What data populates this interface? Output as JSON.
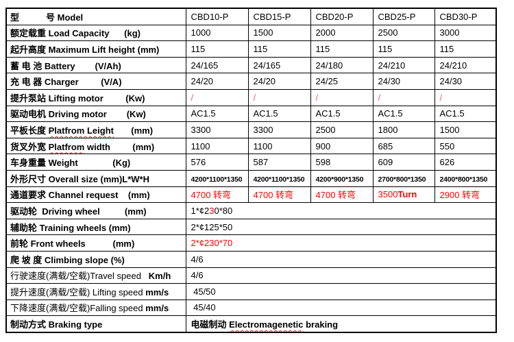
{
  "colors": {
    "highlight_red": "#ff0000",
    "slash_red": "#ff5566",
    "squiggle_red": "#dd2222",
    "grid_black": "#000000"
  },
  "table": {
    "rows": [
      {
        "id": "model",
        "label": [
          {
            "t": "型　　　号 Model",
            "b": true
          }
        ],
        "cells": [
          [
            {
              "t": "CBD10-P"
            }
          ],
          [
            {
              "t": "CBD15-P"
            }
          ],
          [
            {
              "t": "CBD20-P"
            }
          ],
          [
            {
              "t": "CBD25-P"
            }
          ],
          [
            {
              "t": "CBD30-P"
            }
          ]
        ]
      },
      {
        "id": "load-capacity",
        "label": [
          {
            "t": "额定载重 Load Capacity      (kg)",
            "b": true
          }
        ],
        "cells": [
          [
            {
              "t": "1000"
            }
          ],
          [
            {
              "t": "1500"
            }
          ],
          [
            {
              "t": "2000"
            }
          ],
          [
            {
              "t": "2500"
            }
          ],
          [
            {
              "t": "3000"
            }
          ]
        ]
      },
      {
        "id": "max-lift-height",
        "label": [
          {
            "t": "起升高度 Maximum Lift height (mm)",
            "b": true
          }
        ],
        "cells": [
          [
            {
              "t": "115"
            }
          ],
          [
            {
              "t": "115"
            }
          ],
          [
            {
              "t": "115"
            }
          ],
          [
            {
              "t": "115"
            }
          ],
          [
            {
              "t": "115"
            }
          ]
        ]
      },
      {
        "id": "battery",
        "label": [
          {
            "t": "蓄 电 池 Battery        (V/Ah)",
            "b": true
          }
        ],
        "cells": [
          [
            {
              "t": "24/165"
            }
          ],
          [
            {
              "t": "24/165"
            }
          ],
          [
            {
              "t": "24/180"
            }
          ],
          [
            {
              "t": "24/210"
            }
          ],
          [
            {
              "t": "24/210"
            }
          ]
        ]
      },
      {
        "id": "charger",
        "label": [
          {
            "t": "充 电 器 Charger         (V/A)",
            "b": true
          }
        ],
        "cells": [
          [
            {
              "t": "24/20"
            }
          ],
          [
            {
              "t": "24/20"
            }
          ],
          [
            {
              "t": "24/25"
            }
          ],
          [
            {
              "t": "24/30"
            }
          ],
          [
            {
              "t": "24/30"
            }
          ]
        ]
      },
      {
        "id": "lifting-motor",
        "label": [
          {
            "t": "提升泵站 Lifting motor         (Kw)",
            "b": true
          }
        ],
        "cells": [
          [
            {
              "t": "/",
              "slash": true
            }
          ],
          [
            {
              "t": "/",
              "slash": true
            }
          ],
          [
            {
              "t": "/",
              "slash": true
            }
          ],
          [
            {
              "t": "/",
              "slash": true
            }
          ],
          [
            {
              "t": "/",
              "slash": true
            }
          ]
        ]
      },
      {
        "id": "driving-motor",
        "label": [
          {
            "t": "驱动电机 Driving motor        (Kw)",
            "b": true
          }
        ],
        "cells": [
          [
            {
              "t": "AC1.5"
            }
          ],
          [
            {
              "t": "AC1.5"
            }
          ],
          [
            {
              "t": "AC1.5"
            }
          ],
          [
            {
              "t": "AC1.5"
            }
          ],
          [
            {
              "t": "AC1.5"
            }
          ]
        ]
      },
      {
        "id": "platform-length",
        "label": [
          {
            "t": "平板长度 ",
            "b": true
          },
          {
            "t": "Platfrom Leight",
            "b": true,
            "wavy": true
          },
          {
            "t": "       (mm)",
            "b": true
          }
        ],
        "cells": [
          [
            {
              "t": "3300"
            }
          ],
          [
            {
              "t": "3300"
            }
          ],
          [
            {
              "t": "2500"
            }
          ],
          [
            {
              "t": "1800"
            }
          ],
          [
            {
              "t": "1500"
            }
          ]
        ]
      },
      {
        "id": "platform-width",
        "label": [
          {
            "t": "货叉外宽 ",
            "b": true
          },
          {
            "t": "Platfrom",
            "b": true,
            "wavy": true
          },
          {
            "t": " width         (mm)",
            "b": true
          }
        ],
        "cells": [
          [
            {
              "t": "1100"
            }
          ],
          [
            {
              "t": "1100"
            }
          ],
          [
            {
              "t": "900"
            }
          ],
          [
            {
              "t": "685"
            }
          ],
          [
            {
              "t": "550"
            }
          ]
        ]
      },
      {
        "id": "weight",
        "label": [
          {
            "t": "车身重量 Weight              (Kg)",
            "b": true
          }
        ],
        "cells": [
          [
            {
              "t": "576"
            }
          ],
          [
            {
              "t": "587"
            }
          ],
          [
            {
              "t": "598"
            }
          ],
          [
            {
              "t": "609"
            }
          ],
          [
            {
              "t": "626"
            }
          ]
        ]
      },
      {
        "id": "overall-size",
        "label": [
          {
            "t": "外形尺寸 Overall size (mm)L*W*H",
            "b": true
          }
        ],
        "cells": [
          [
            {
              "t": "4200*1100*1350",
              "b": true,
              "small": true
            }
          ],
          [
            {
              "t": "4200*1100*1350",
              "b": true,
              "small": true
            }
          ],
          [
            {
              "t": "4200*900*1350",
              "b": true,
              "small": true
            }
          ],
          [
            {
              "t": "2700*800*1350",
              "b": true,
              "small": true
            }
          ],
          [
            {
              "t": "2400*800*1350",
              "b": true,
              "small": true
            }
          ]
        ]
      },
      {
        "id": "channel-request",
        "label": [
          {
            "t": "通道要求 Channel request    (mm)",
            "b": true
          }
        ],
        "cells": [
          [
            {
              "t": "4700 转弯",
              "red": true
            }
          ],
          [
            {
              "t": "4700 转弯",
              "red": true
            }
          ],
          [
            {
              "t": "4700 转弯",
              "red": true
            }
          ],
          [
            {
              "t": "3500",
              "red": true
            },
            {
              "t": "Turn",
              "red": true,
              "b": true
            }
          ],
          [
            {
              "t": "2900 转弯",
              "red": true
            }
          ]
        ]
      },
      {
        "id": "driving-wheel",
        "label": [
          {
            "t": "驱动轮  Driving wheel          (mm)",
            "b": true
          }
        ],
        "merged": true,
        "cells": [
          [
            {
              "t": "1*¢2"
            },
            {
              "t": "3",
              "red": true
            },
            {
              "t": "0*80"
            }
          ]
        ]
      },
      {
        "id": "training-wheels",
        "label": [
          {
            "t": "辅助轮 Training wheels (mm)",
            "b": true
          }
        ],
        "merged": true,
        "cells": [
          [
            {
              "t": "2*¢125*50"
            }
          ]
        ]
      },
      {
        "id": "front-wheels",
        "label": [
          {
            "t": "前轮 Front wheels           (mm)",
            "b": true
          }
        ],
        "merged": true,
        "cells": [
          [
            {
              "t": "2*¢230*70",
              "red": true
            }
          ]
        ]
      },
      {
        "id": "climbing-slope",
        "label": [
          {
            "t": "爬 坡 度 Climbing slope (%)",
            "b": true
          }
        ],
        "merged": true,
        "cells": [
          [
            {
              "t": "4/6"
            }
          ]
        ]
      },
      {
        "id": "travel-speed",
        "label": [
          {
            "t": "行驶速度(满载/空载)Travel speed   "
          },
          {
            "t": "Km/h",
            "b": true
          }
        ],
        "merged": true,
        "cells": [
          [
            {
              "t": "4/6"
            }
          ]
        ]
      },
      {
        "id": "lifting-speed",
        "label": [
          {
            "t": "提升速度(满载/空载) Lifting speed "
          },
          {
            "t": "mm/s",
            "b": true
          }
        ],
        "merged": true,
        "cells": [
          [
            {
              "t": " 45/50"
            }
          ]
        ]
      },
      {
        "id": "falling-speed",
        "label": [
          {
            "t": "下降速度(满载/空载)Falling speed "
          },
          {
            "t": "mm/s",
            "b": true
          }
        ],
        "merged": true,
        "cells": [
          [
            {
              "t": " 45/40"
            }
          ]
        ]
      },
      {
        "id": "braking-type",
        "label": [
          {
            "t": "制动方式 Braking type",
            "b": true
          }
        ],
        "merged": true,
        "cells": [
          [
            {
              "t": "电磁制动 ",
              "b": true
            },
            {
              "t": "Electromagenetic",
              "b": true,
              "wavy": true
            },
            {
              "t": " braking",
              "b": true
            }
          ]
        ]
      }
    ]
  }
}
